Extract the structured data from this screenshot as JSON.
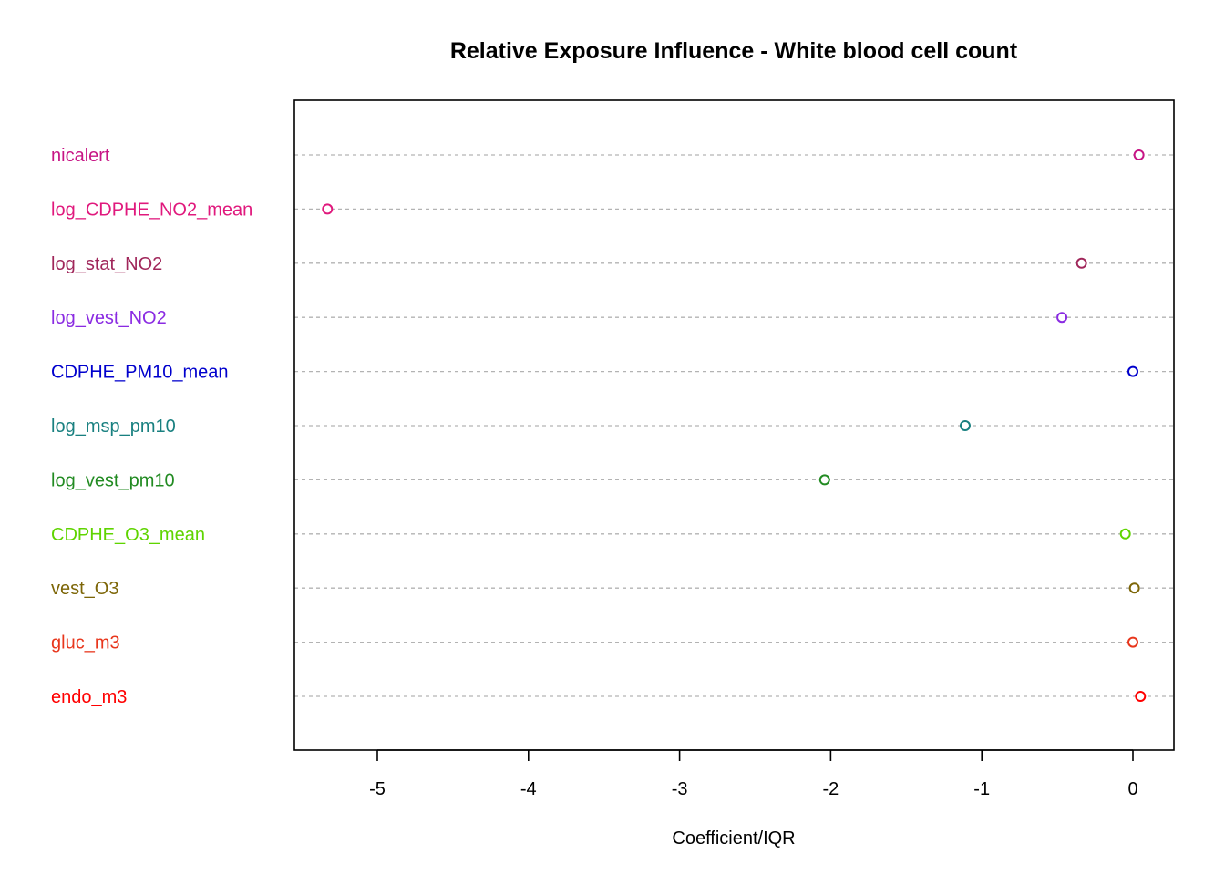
{
  "chart_data": {
    "type": "scatter",
    "title": "Relative Exposure Influence - White blood cell count",
    "xlabel": "Coefficient/IQR",
    "ylabel": "",
    "xlim": [
      -5.56,
      0.55
    ],
    "xticks": [
      -5,
      -4,
      -3,
      -2,
      -1,
      0
    ],
    "grid": "horizontal dashed",
    "categories": [
      {
        "label": "nicalert",
        "value": 0.04,
        "color": "#c71585"
      },
      {
        "label": "log_CDPHE_NO2_mean",
        "value": -5.33,
        "color": "#e0197d"
      },
      {
        "label": "log_stat_NO2",
        "value": -0.34,
        "color": "#a0265a"
      },
      {
        "label": "log_vest_NO2",
        "value": -0.47,
        "color": "#8a2be2"
      },
      {
        "label": "CDPHE_PM10_mean",
        "value": 0.0,
        "color": "#0000cd"
      },
      {
        "label": "log_msp_pm10",
        "value": -1.11,
        "color": "#198080"
      },
      {
        "label": "log_vest_pm10",
        "value": -2.04,
        "color": "#228b22"
      },
      {
        "label": "CDPHE_O3_mean",
        "value": -0.05,
        "color": "#5fd400"
      },
      {
        "label": "vest_O3",
        "value": 0.01,
        "color": "#7d6608"
      },
      {
        "label": "gluc_m3",
        "value": 0.0,
        "color": "#e8361c"
      },
      {
        "label": "endo_m3",
        "value": 0.05,
        "color": "#ff0000"
      }
    ]
  }
}
